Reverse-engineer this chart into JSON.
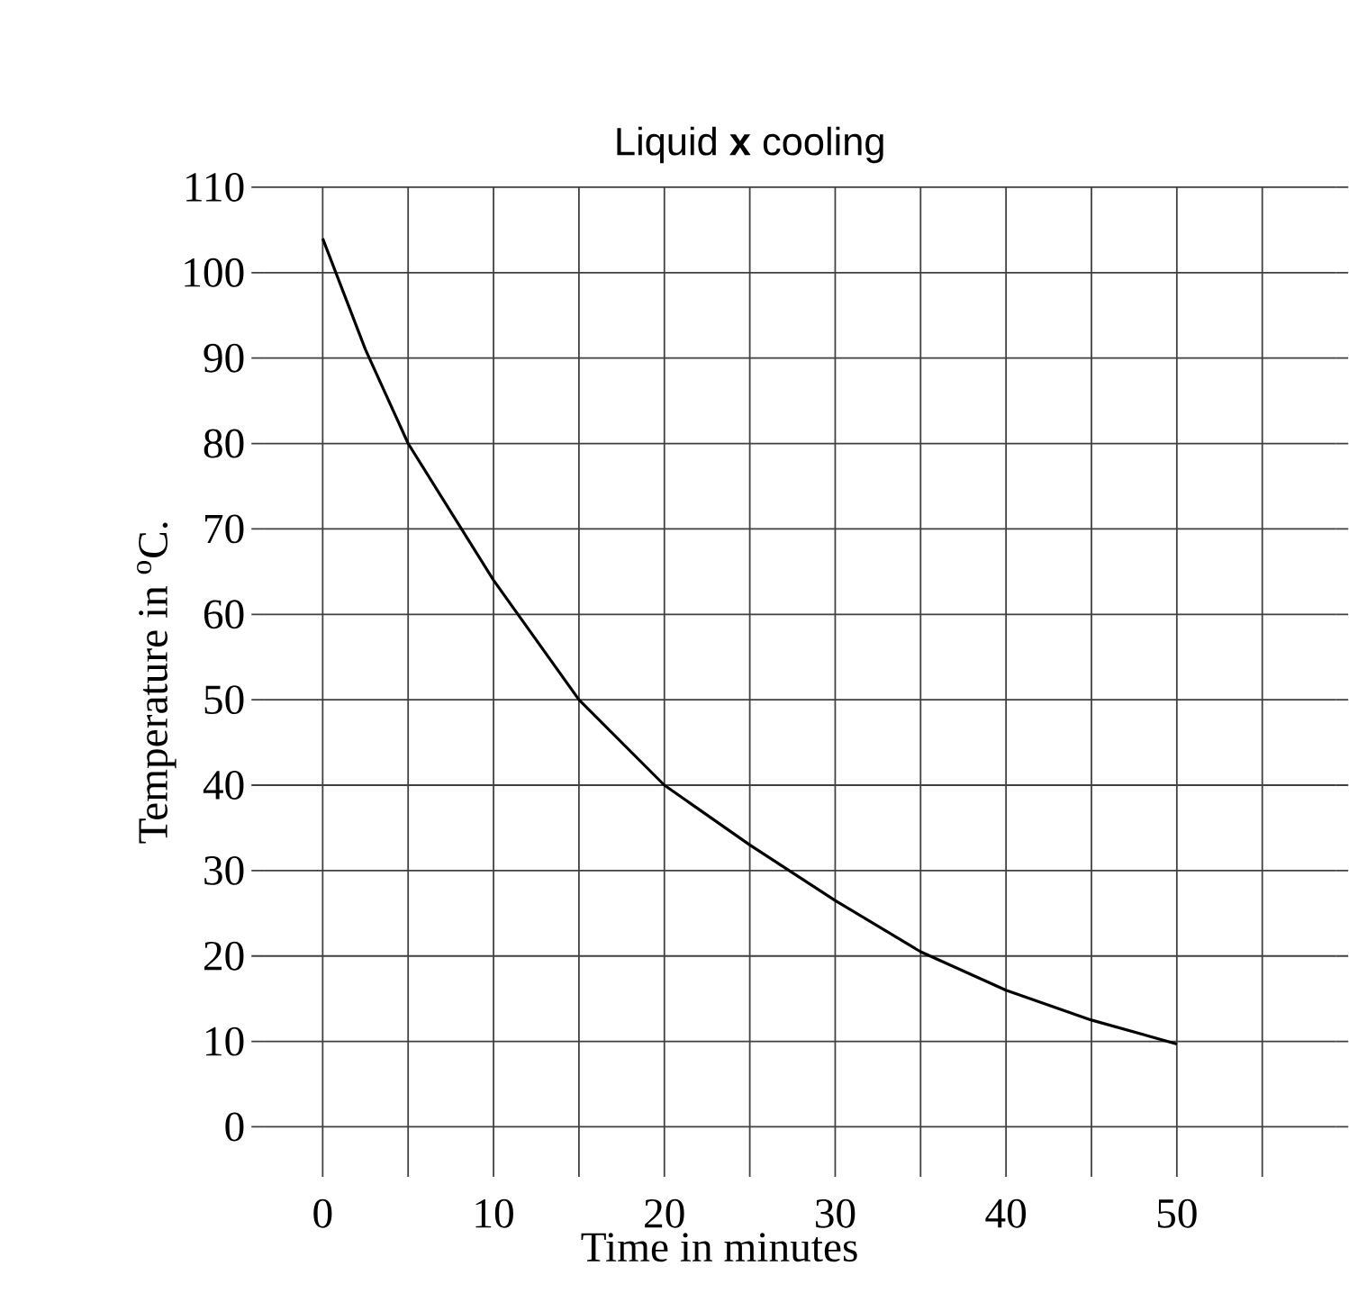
{
  "chart_data": {
    "type": "line",
    "title": "Liquid **x** cooling",
    "xlabel": "Time in minutes",
    "ylabel": "Temperature in $^{o}$C.",
    "x": [
      0,
      2.5,
      5,
      10,
      15,
      20,
      25,
      30,
      35,
      40,
      45,
      50
    ],
    "series": [
      {
        "color": "#000000",
        "values": [
          104,
          91,
          80,
          64,
          50,
          40,
          33,
          26.5,
          20.5,
          16,
          12.5,
          9.7
        ]
      }
    ],
    "xlim": [
      -3.44,
      59.3
    ],
    "ylim": [
      -5.85,
      110
    ],
    "xticks": [
      0,
      {
        "value": 5,
        "label": null
      },
      10,
      {
        "value": 15,
        "label": null
      },
      20,
      {
        "value": 25,
        "label": null
      },
      30,
      {
        "value": 35,
        "label": null
      },
      40,
      {
        "value": 45,
        "label": null
      },
      50,
      {
        "value": 55,
        "label": null
      }
    ],
    "yticks": [
      0,
      10,
      20,
      30,
      40,
      50,
      60,
      70,
      80,
      90,
      100,
      110
    ],
    "grid": true,
    "marker": "none",
    "line_style": "solid"
  }
}
